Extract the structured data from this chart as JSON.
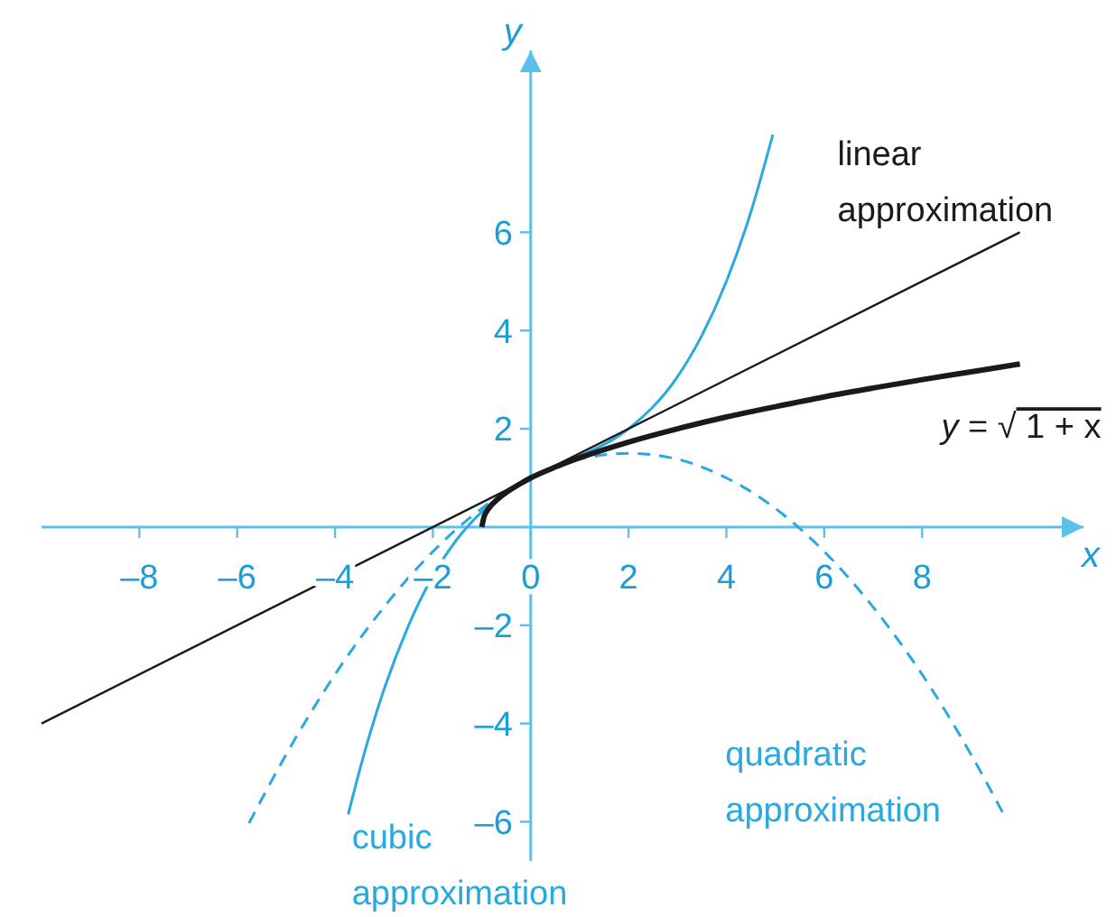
{
  "chart_data": {
    "type": "line",
    "xlabel": "x",
    "ylabel": "y",
    "xlim": [
      -10,
      11.3
    ],
    "ylim": [
      -6.8,
      9.7
    ],
    "xticks": [
      {
        "value": -8,
        "label": "–8"
      },
      {
        "value": -6,
        "label": "–6"
      },
      {
        "value": -4,
        "label": "–4"
      },
      {
        "value": -2,
        "label": "–2"
      },
      0,
      2,
      4,
      6,
      8
    ],
    "yticks": [
      {
        "value": -6,
        "label": "–6"
      },
      {
        "value": -4,
        "label": "–4"
      },
      {
        "value": -2,
        "label": "–2"
      },
      2,
      4,
      6
    ],
    "series": [
      {
        "name": "y = √1 + x",
        "color": "#1a1a1a",
        "x": [
          -1,
          -0.95,
          -0.9,
          -0.8,
          -0.6,
          -0.4,
          -0.2,
          0,
          0.5,
          1,
          2,
          3,
          4,
          5,
          6,
          7,
          8,
          9,
          10
        ],
        "values": [
          0,
          0.22,
          0.32,
          0.45,
          0.63,
          0.77,
          0.89,
          1,
          1.22,
          1.41,
          1.73,
          2,
          2.24,
          2.45,
          2.65,
          2.83,
          3,
          3.16,
          3.32
        ]
      },
      {
        "name": "linear approximation",
        "color": "#1a1a1a",
        "x": [
          -10,
          10
        ],
        "values": [
          -4,
          6
        ]
      },
      {
        "name": "quadratic approximation",
        "color": "#29a9df",
        "line_style": "dashed",
        "x": [
          -5.76,
          -5,
          -4,
          -3,
          -2,
          -1,
          0,
          1,
          2,
          3,
          4,
          5,
          6,
          7,
          8,
          9,
          9.7
        ],
        "values": [
          -6.03,
          -4.63,
          -3,
          -1.63,
          -0.5,
          0.38,
          1,
          1.38,
          1.5,
          1.38,
          1,
          0.38,
          -0.5,
          -1.63,
          -3,
          -4.63,
          -5.91
        ]
      },
      {
        "name": "cubic approximation",
        "color": "#29a9df",
        "x": [
          -3.73,
          -3.5,
          -3,
          -2.5,
          -2,
          -1.5,
          -1,
          -0.5,
          0,
          1,
          2,
          3,
          3.5,
          4,
          4.5,
          4.95
        ],
        "values": [
          -5.85,
          -4.96,
          -3.31,
          -2.01,
          -1,
          -0.24,
          0.31,
          0.71,
          1,
          1.44,
          2,
          3.06,
          3.9,
          5,
          6.41,
          7.99
        ]
      }
    ]
  }
}
